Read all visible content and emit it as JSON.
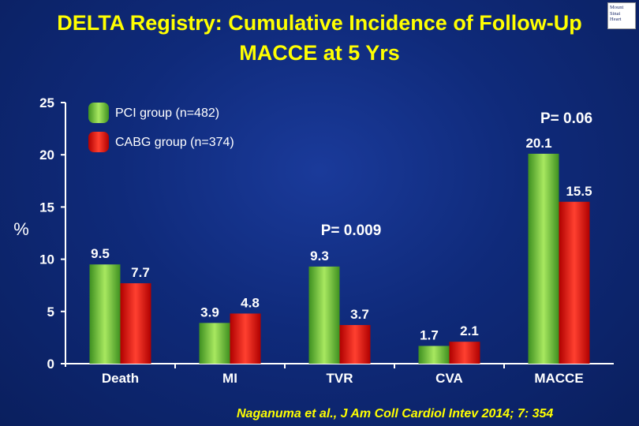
{
  "logo": {
    "lines": [
      "Mount",
      "Sinai",
      "Heart"
    ]
  },
  "citation": "Naganuma et al., J Am Coll Cardiol Intev 2014; 7: 354",
  "colors": {
    "pci": "#5ab832",
    "pci_light": "#b8f070",
    "cabg": "#e00000",
    "cabg_light": "#ff6b5a",
    "text": "#ffffff",
    "title": "#ffff00"
  },
  "chart_data": {
    "type": "bar",
    "title": "DELTA Registry: Cumulative Incidence of Follow-Up MACCE at 5 Yrs",
    "xlabel": "",
    "ylabel": "%",
    "ylim": [
      0,
      25
    ],
    "yticks": [
      0,
      5,
      10,
      15,
      20,
      25
    ],
    "grid": false,
    "legend_position": "top-left",
    "categories": [
      "Death",
      "MI",
      "TVR",
      "CVA",
      "MACCE"
    ],
    "series": [
      {
        "name": "PCI group (n=482)",
        "values": [
          9.5,
          3.9,
          9.3,
          1.7,
          20.1
        ],
        "labels": [
          "9.5",
          "3.9",
          "9.3",
          "1.7",
          "20.1"
        ]
      },
      {
        "name": "CABG group (n=374)",
        "values": [
          7.7,
          4.8,
          3.7,
          2.1,
          15.5
        ],
        "labels": [
          "7.7",
          "4.8",
          "3.7",
          "2.1",
          "15.5"
        ]
      }
    ],
    "annotations": [
      {
        "text": "P= 0.009",
        "category": "TVR"
      },
      {
        "text": "P= 0.06",
        "category": "MACCE"
      }
    ]
  }
}
